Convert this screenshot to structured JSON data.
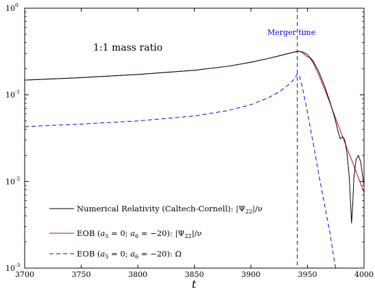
{
  "chart_data": {
    "type": "line",
    "title": "",
    "xlabel": "t",
    "ylabel": "",
    "xlim": [
      3700,
      4000
    ],
    "ylim": [
      0.001,
      1
    ],
    "yscale": "log",
    "grid": false,
    "legend_placement": "bottom-left",
    "x_ticks": [
      "3700",
      "3750",
      "3800",
      "3850",
      "3900",
      "3950",
      "4000"
    ],
    "y_ticks": [
      {
        "base": "10",
        "exp": "0",
        "value": 1
      },
      {
        "base": "10",
        "exp": "-1",
        "value": 0.1
      },
      {
        "base": "10",
        "exp": "-2",
        "value": 0.01
      },
      {
        "base": "10",
        "exp": "-3",
        "value": 0.001
      }
    ],
    "annotations": {
      "mass_ratio": "1:1 mass ratio",
      "merger": "Merger time",
      "merger_time": 3941
    },
    "series": [
      {
        "name": "Numerical Relativity (Caltech-Cornell): |Ψ22|/ν",
        "color": "#000000",
        "dash": "solid",
        "points": [
          [
            3700,
            0.148
          ],
          [
            3750,
            0.158
          ],
          [
            3800,
            0.172
          ],
          [
            3850,
            0.192
          ],
          [
            3880,
            0.214
          ],
          [
            3900,
            0.238
          ],
          [
            3915,
            0.262
          ],
          [
            3925,
            0.282
          ],
          [
            3933,
            0.3
          ],
          [
            3938,
            0.31
          ],
          [
            3942,
            0.318
          ],
          [
            3946,
            0.312
          ],
          [
            3950,
            0.29
          ],
          [
            3955,
            0.245
          ],
          [
            3960,
            0.185
          ],
          [
            3965,
            0.128
          ],
          [
            3970,
            0.082
          ],
          [
            3974,
            0.055
          ],
          [
            3977,
            0.038
          ],
          [
            3979,
            0.031
          ],
          [
            3981,
            0.033
          ],
          [
            3983,
            0.03
          ],
          [
            3985,
            0.021
          ],
          [
            3987,
            0.011
          ],
          [
            3988,
            0.006
          ],
          [
            3989,
            0.0033
          ],
          [
            3990,
            0.0055
          ],
          [
            3991,
            0.011
          ],
          [
            3993,
            0.018
          ],
          [
            3995,
            0.02
          ],
          [
            3997,
            0.017
          ],
          [
            3999,
            0.011
          ],
          [
            4000,
            0.009
          ]
        ]
      },
      {
        "name": "EOB (a5 = 0; a6 = -20): |Ψ22|/ν",
        "color": "#cc0000",
        "dash": "solid",
        "points": [
          [
            3700,
            0.148
          ],
          [
            3750,
            0.158
          ],
          [
            3800,
            0.172
          ],
          [
            3850,
            0.192
          ],
          [
            3880,
            0.214
          ],
          [
            3900,
            0.238
          ],
          [
            3915,
            0.262
          ],
          [
            3925,
            0.282
          ],
          [
            3933,
            0.3
          ],
          [
            3938,
            0.312
          ],
          [
            3941,
            0.318
          ],
          [
            3944,
            0.314
          ],
          [
            3946,
            0.302
          ],
          [
            3949,
            0.28
          ],
          [
            3952,
            0.268
          ],
          [
            3955,
            0.235
          ],
          [
            3960,
            0.17
          ],
          [
            3965,
            0.118
          ],
          [
            3970,
            0.08
          ],
          [
            3975,
            0.053
          ],
          [
            3980,
            0.036
          ],
          [
            3985,
            0.024
          ],
          [
            3990,
            0.0165
          ],
          [
            3995,
            0.011
          ],
          [
            4000,
            0.0075
          ]
        ]
      },
      {
        "name": "EOB (a5 = 0; a6 = -20): Ω",
        "color": "#0000ff",
        "dash": "dashed",
        "points": [
          [
            3700,
            0.043
          ],
          [
            3750,
            0.046
          ],
          [
            3800,
            0.05
          ],
          [
            3850,
            0.057
          ],
          [
            3880,
            0.066
          ],
          [
            3900,
            0.077
          ],
          [
            3915,
            0.092
          ],
          [
            3925,
            0.108
          ],
          [
            3933,
            0.13
          ],
          [
            3938,
            0.15
          ],
          [
            3941,
            0.175
          ],
          [
            3943,
            0.165
          ],
          [
            3945,
            0.13
          ],
          [
            3948,
            0.085
          ],
          [
            3950,
            0.062
          ],
          [
            3955,
            0.028
          ],
          [
            3960,
            0.012
          ],
          [
            3965,
            0.0055
          ],
          [
            3970,
            0.0025
          ],
          [
            3973,
            0.0014
          ],
          [
            3975,
            0.001
          ]
        ]
      }
    ]
  }
}
